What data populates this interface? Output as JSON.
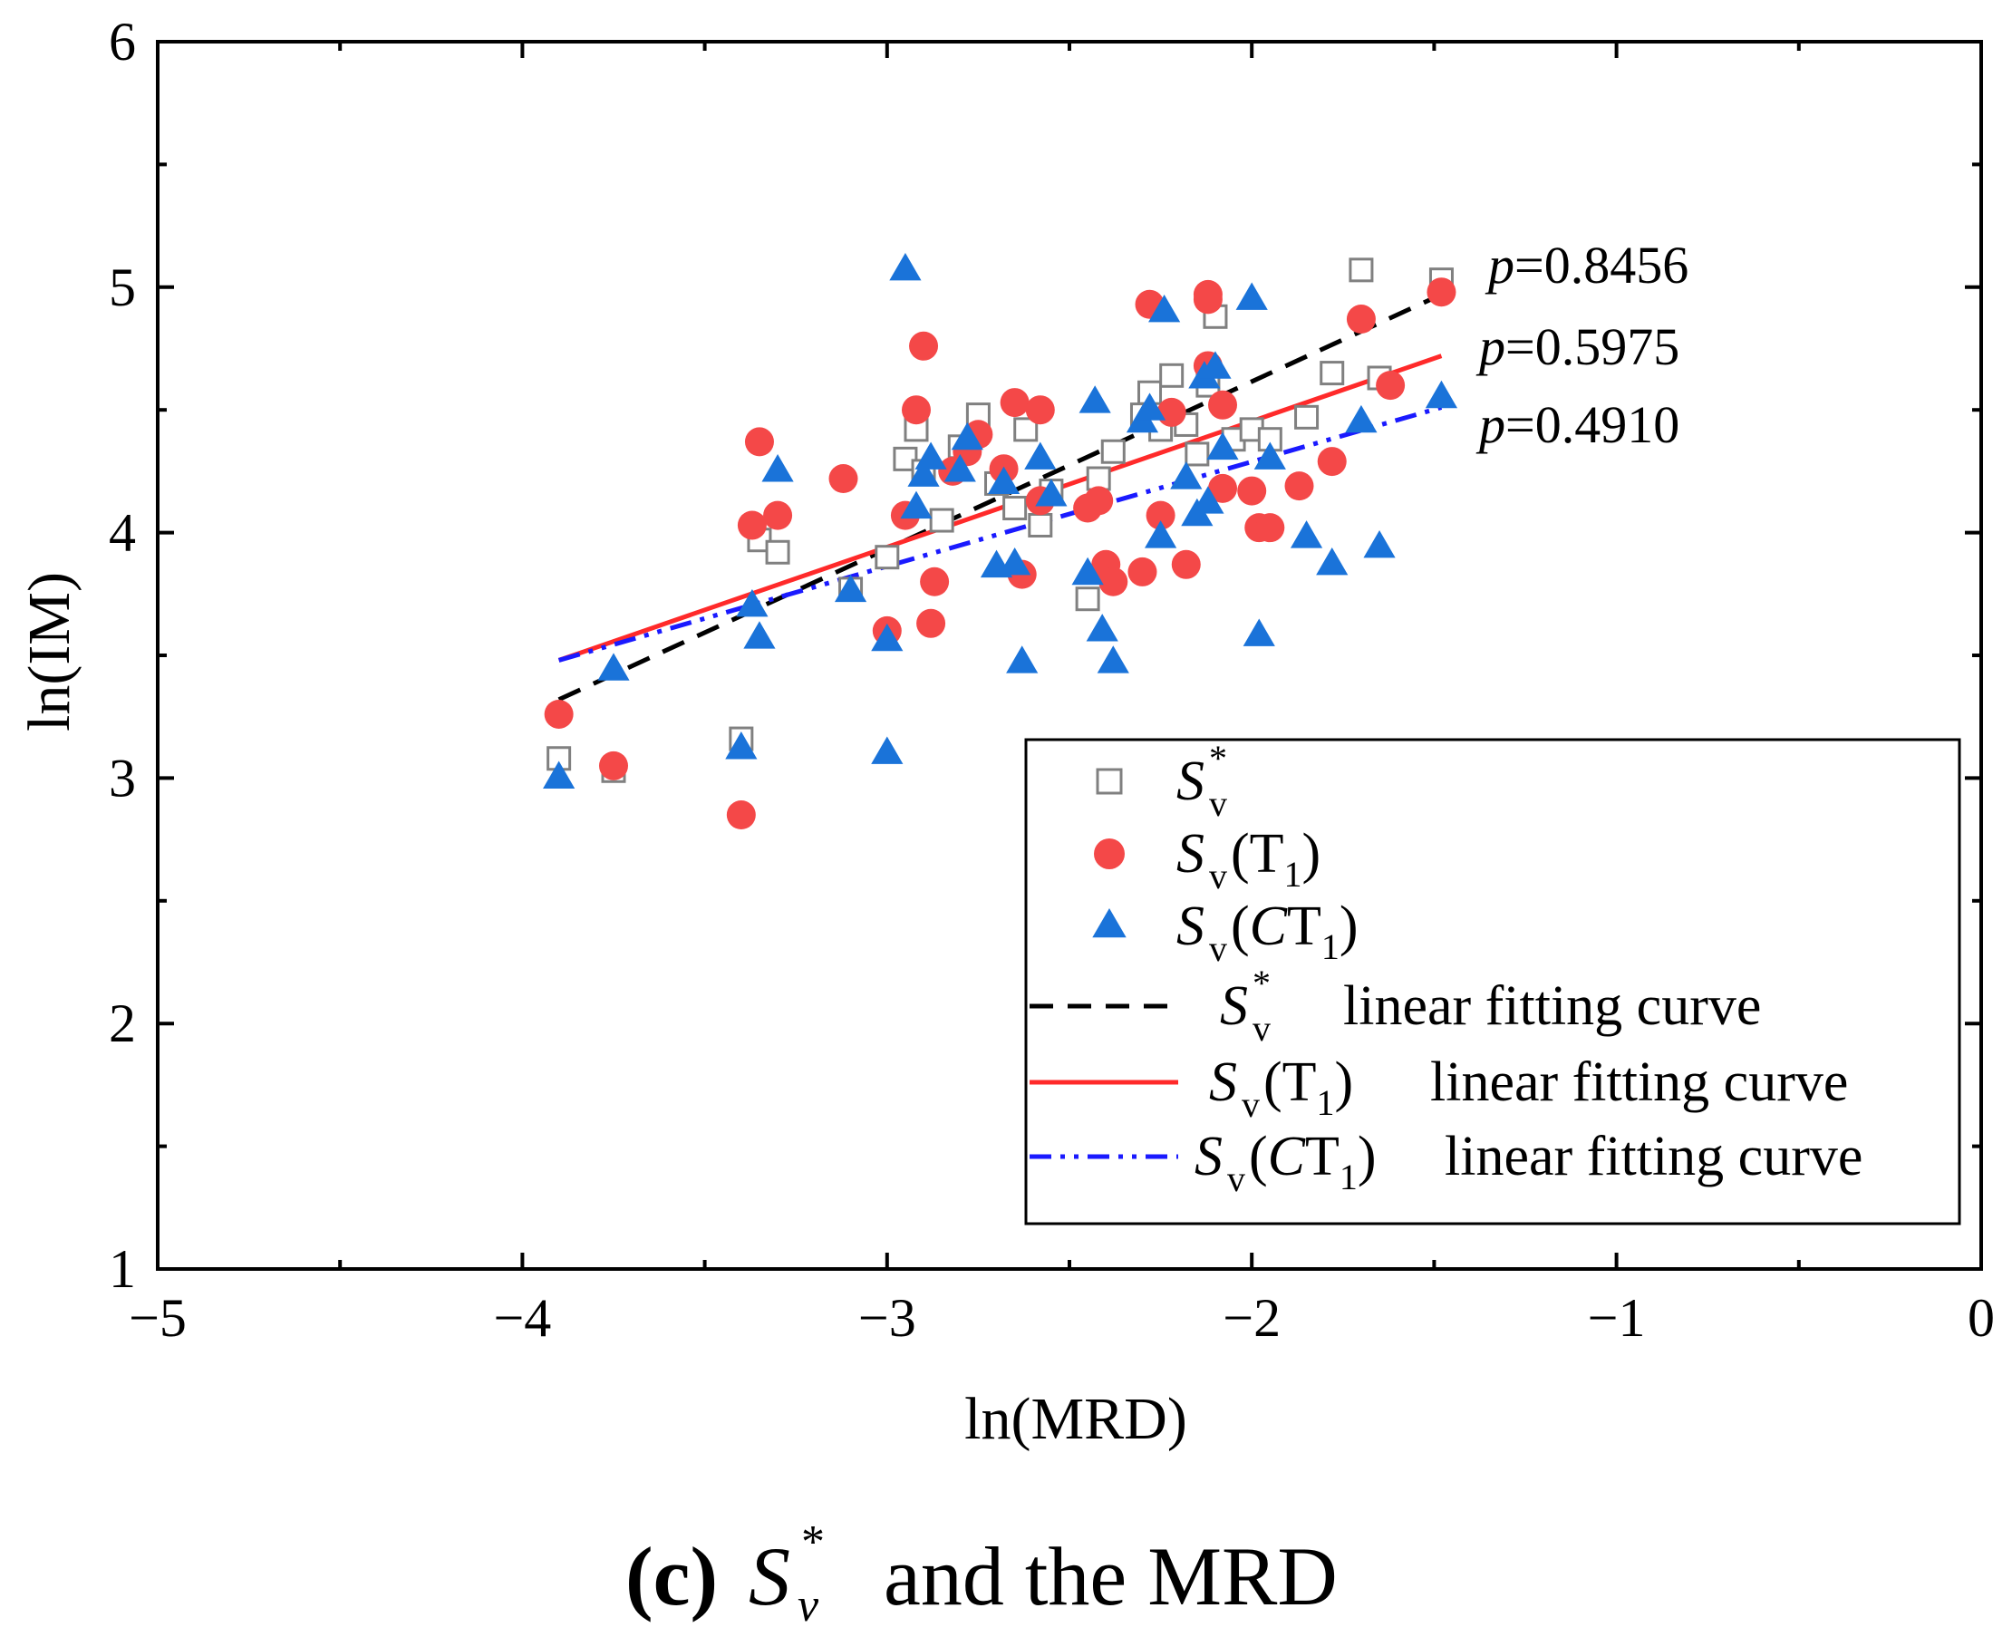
{
  "chart_data": {
    "type": "scatter",
    "caption": {
      "letter": "(c)",
      "symbol": "S",
      "sup": "*",
      "sub": "v",
      "rest": "and the MRD"
    },
    "xlabel": "ln(MRD)",
    "ylabel": "ln(IM)",
    "xlim": [
      -5,
      0
    ],
    "ylim": [
      1,
      6
    ],
    "xticks": [
      -5,
      -4,
      -3,
      -2,
      -1,
      0
    ],
    "xtick_labels": [
      "−5",
      "−4",
      "−3",
      "−2",
      "−1",
      "0"
    ],
    "yticks": [
      1,
      2,
      3,
      4,
      5,
      6
    ],
    "ytick_labels": [
      "1",
      "2",
      "3",
      "4",
      "5",
      "6"
    ],
    "legend_position": "bottom-right",
    "series": [
      {
        "name": "Sv*",
        "label": {
          "main": "S",
          "sub": "v",
          "sup": "*",
          "suffix": ""
        },
        "marker": "open-square",
        "color": "#808080",
        "points": [
          [
            -3.9,
            3.08
          ],
          [
            -3.75,
            3.03
          ],
          [
            -3.4,
            3.16
          ],
          [
            -3.35,
            3.97
          ],
          [
            -3.3,
            3.92
          ],
          [
            -3.1,
            3.77
          ],
          [
            -3.0,
            3.9
          ],
          [
            -2.95,
            4.3
          ],
          [
            -2.92,
            4.42
          ],
          [
            -2.9,
            4.25
          ],
          [
            -2.85,
            4.05
          ],
          [
            -2.8,
            4.35
          ],
          [
            -2.75,
            4.48
          ],
          [
            -2.7,
            4.2
          ],
          [
            -2.65,
            4.1
          ],
          [
            -2.62,
            4.42
          ],
          [
            -2.58,
            4.03
          ],
          [
            -2.55,
            4.17
          ],
          [
            -2.45,
            3.73
          ],
          [
            -2.42,
            4.22
          ],
          [
            -2.38,
            4.33
          ],
          [
            -2.3,
            4.48
          ],
          [
            -2.28,
            4.57
          ],
          [
            -2.25,
            4.42
          ],
          [
            -2.22,
            4.64
          ],
          [
            -2.18,
            4.44
          ],
          [
            -2.15,
            4.32
          ],
          [
            -2.12,
            4.6
          ],
          [
            -2.1,
            4.88
          ],
          [
            -2.05,
            4.38
          ],
          [
            -2.0,
            4.42
          ],
          [
            -1.95,
            4.38
          ],
          [
            -1.85,
            4.47
          ],
          [
            -1.78,
            4.65
          ],
          [
            -1.7,
            5.07
          ],
          [
            -1.65,
            4.63
          ],
          [
            -1.48,
            5.03
          ]
        ]
      },
      {
        "name": "Sv(T1)",
        "label": {
          "main": "S",
          "sub": "v",
          "paren": "T",
          "paren_sub": "1",
          "suffix": ""
        },
        "marker": "filled-circle",
        "color": "#f44848",
        "points": [
          [
            -3.9,
            3.26
          ],
          [
            -3.75,
            3.05
          ],
          [
            -3.4,
            2.85
          ],
          [
            -3.37,
            4.03
          ],
          [
            -3.35,
            4.37
          ],
          [
            -3.3,
            4.07
          ],
          [
            -3.12,
            4.22
          ],
          [
            -3.0,
            3.6
          ],
          [
            -2.95,
            4.07
          ],
          [
            -2.92,
            4.5
          ],
          [
            -2.9,
            4.76
          ],
          [
            -2.88,
            3.63
          ],
          [
            -2.87,
            3.8
          ],
          [
            -2.82,
            4.25
          ],
          [
            -2.78,
            4.33
          ],
          [
            -2.75,
            4.4
          ],
          [
            -2.68,
            4.26
          ],
          [
            -2.65,
            4.53
          ],
          [
            -2.63,
            3.83
          ],
          [
            -2.58,
            4.5
          ],
          [
            -2.58,
            4.13
          ],
          [
            -2.45,
            4.1
          ],
          [
            -2.42,
            4.13
          ],
          [
            -2.4,
            3.87
          ],
          [
            -2.38,
            3.8
          ],
          [
            -2.3,
            3.84
          ],
          [
            -2.28,
            4.93
          ],
          [
            -2.25,
            4.07
          ],
          [
            -2.22,
            4.49
          ],
          [
            -2.18,
            3.87
          ],
          [
            -2.12,
            4.95
          ],
          [
            -2.12,
            4.97
          ],
          [
            -2.12,
            4.68
          ],
          [
            -2.08,
            4.52
          ],
          [
            -2.08,
            4.18
          ],
          [
            -2.0,
            4.17
          ],
          [
            -1.98,
            4.02
          ],
          [
            -1.95,
            4.02
          ],
          [
            -1.87,
            4.19
          ],
          [
            -1.78,
            4.29
          ],
          [
            -1.7,
            4.87
          ],
          [
            -1.62,
            4.6
          ],
          [
            -1.48,
            4.98
          ]
        ]
      },
      {
        "name": "Sv(CT1)",
        "label": {
          "main": "S",
          "sub": "v",
          "paren": "CT",
          "paren_sub": "1",
          "suffix": ""
        },
        "marker": "filled-triangle",
        "color": "#1a73d9",
        "points": [
          [
            -3.9,
            3.0
          ],
          [
            -3.75,
            3.44
          ],
          [
            -3.4,
            3.12
          ],
          [
            -3.37,
            3.7
          ],
          [
            -3.35,
            3.57
          ],
          [
            -3.3,
            4.25
          ],
          [
            -3.1,
            3.76
          ],
          [
            -3.0,
            3.1
          ],
          [
            -3.0,
            3.56
          ],
          [
            -2.95,
            5.07
          ],
          [
            -2.92,
            4.1
          ],
          [
            -2.9,
            4.23
          ],
          [
            -2.88,
            4.3
          ],
          [
            -2.8,
            4.25
          ],
          [
            -2.78,
            4.38
          ],
          [
            -2.7,
            3.86
          ],
          [
            -2.68,
            4.2
          ],
          [
            -2.65,
            3.87
          ],
          [
            -2.63,
            3.47
          ],
          [
            -2.58,
            4.3
          ],
          [
            -2.55,
            4.15
          ],
          [
            -2.45,
            3.83
          ],
          [
            -2.43,
            4.53
          ],
          [
            -2.41,
            3.6
          ],
          [
            -2.38,
            3.47
          ],
          [
            -2.3,
            4.45
          ],
          [
            -2.28,
            4.5
          ],
          [
            -2.25,
            3.98
          ],
          [
            -2.24,
            4.9
          ],
          [
            -2.18,
            4.22
          ],
          [
            -2.15,
            4.07
          ],
          [
            -2.13,
            4.63
          ],
          [
            -2.12,
            4.12
          ],
          [
            -2.1,
            4.67
          ],
          [
            -2.08,
            4.34
          ],
          [
            -2.0,
            4.95
          ],
          [
            -1.98,
            3.58
          ],
          [
            -1.95,
            4.3
          ],
          [
            -1.85,
            3.98
          ],
          [
            -1.78,
            3.87
          ],
          [
            -1.7,
            4.45
          ],
          [
            -1.65,
            3.94
          ],
          [
            -1.48,
            4.55
          ]
        ]
      }
    ],
    "fit_lines": [
      {
        "name": "Sv* linear fitting curve",
        "style": "dashed",
        "color": "#000000",
        "x": [
          -3.9,
          -1.48
        ],
        "y": [
          3.32,
          4.97
        ],
        "p_label": "p=0.8456",
        "p_letter": "p",
        "p_value": "=0.8456",
        "legend_text": "linear fitting curve",
        "label": {
          "main": "S",
          "sub": "v",
          "sup": "*"
        }
      },
      {
        "name": "Sv(T1) linear fitting curve",
        "style": "solid",
        "color": "#ff2a2a",
        "x": [
          -3.9,
          -1.48
        ],
        "y": [
          3.48,
          4.72
        ],
        "p_label": "p=0.5975",
        "p_letter": "p",
        "p_value": "=0.5975",
        "legend_text": "linear fitting curve",
        "label": {
          "main": "S",
          "sub": "v",
          "paren": "T",
          "paren_sub": "1"
        }
      },
      {
        "name": "Sv(CT1) linear fitting curve",
        "style": "dash-dot-dot",
        "color": "#1a1aff",
        "x": [
          -3.9,
          -1.48
        ],
        "y": [
          3.48,
          4.51
        ],
        "p_label": "p=0.4910",
        "p_letter": "p",
        "p_value": "=0.4910",
        "legend_text": "linear fitting curve",
        "label": {
          "main": "S",
          "sub": "v",
          "paren": "CT",
          "paren_sub": "1"
        }
      }
    ]
  }
}
